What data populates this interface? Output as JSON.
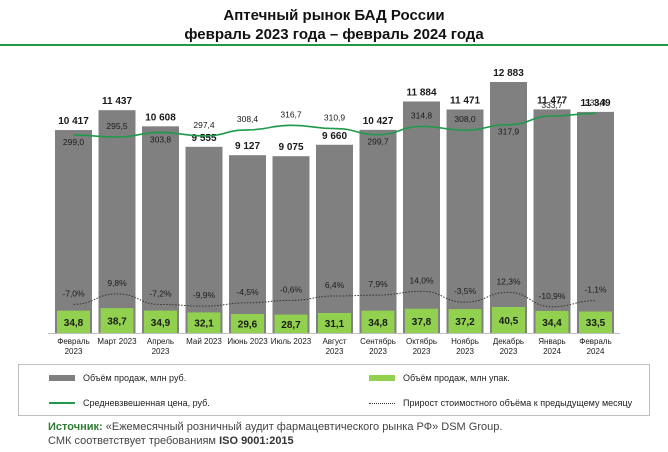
{
  "header": {
    "title_line1": "Аптечный рынок БАД России",
    "title_line2": "февраль 2023 года – февраль 2024 года"
  },
  "colors": {
    "accent_green": "#1f9a4a",
    "bar_gray": "#808080",
    "bar_green": "#92d050",
    "dotted_line": "#333333"
  },
  "chart_data": {
    "type": "bar",
    "categories": [
      "Февраль 2023",
      "Март 2023",
      "Апрель 2023",
      "Май 2023",
      "Июнь 2023",
      "Июль 2023",
      "Август 2023",
      "Сентябрь 2023",
      "Октябрь 2023",
      "Ноябрь 2023",
      "Декабрь 2023",
      "Январь 2024",
      "Февраль 2024"
    ],
    "category_labels": [
      [
        "Февраль",
        "2023"
      ],
      [
        "Март 2023"
      ],
      [
        "Апрель",
        "2023"
      ],
      [
        "Май 2023"
      ],
      [
        "Июнь 2023"
      ],
      [
        "Июль 2023"
      ],
      [
        "Август",
        "2023"
      ],
      [
        "Сентябрь",
        "2023"
      ],
      [
        "Октябрь",
        "2023"
      ],
      [
        "Ноябрь",
        "2023"
      ],
      [
        "Декабрь",
        "2023"
      ],
      [
        "Январь",
        "2024"
      ],
      [
        "Февраль",
        "2024"
      ]
    ],
    "series": [
      {
        "name": "Объём продаж, млн руб.",
        "kind": "bar",
        "values": [
          10417,
          11437,
          10608,
          9555,
          9127,
          9075,
          9660,
          10427,
          11884,
          11471,
          12883,
          11477,
          11349
        ],
        "labels": [
          "10 417",
          "11 437",
          "10 608",
          "9 555",
          "9 127",
          "9 075",
          "9 660",
          "10 427",
          "11 884",
          "11 471",
          "12 883",
          "11 477",
          "11 349"
        ]
      },
      {
        "name": "Объём продаж, млн упак.",
        "kind": "bar",
        "values": [
          34.8,
          38.7,
          34.9,
          32.1,
          29.6,
          28.7,
          31.1,
          34.8,
          37.8,
          37.2,
          40.5,
          34.4,
          33.5
        ],
        "labels": [
          "34,8",
          "38,7",
          "34,9",
          "32,1",
          "29,6",
          "28,7",
          "31,1",
          "34,8",
          "37,8",
          "37,2",
          "40,5",
          "34,4",
          "33,5"
        ]
      },
      {
        "name": "Средневзвешенная цена, руб.",
        "kind": "line",
        "values": [
          299.0,
          295.5,
          303.8,
          297.4,
          308.4,
          316.7,
          310.9,
          299.7,
          314.8,
          308.0,
          317.9,
          333.7,
          338.4
        ],
        "labels": [
          "299,0",
          "295,5",
          "303,8",
          "297,4",
          "308,4",
          "316,7",
          "310,9",
          "299,7",
          "314,8",
          "308,0",
          "317,9",
          "333,7",
          "338,4"
        ]
      },
      {
        "name": "Прирост стоимостного объёма к предыдущему месяцу",
        "kind": "line-dotted",
        "values": [
          -7.0,
          9.8,
          -7.2,
          -9.9,
          -4.5,
          -0.6,
          6.4,
          7.9,
          14.0,
          -3.5,
          12.3,
          -10.9,
          -1.1
        ],
        "labels": [
          "-7,0%",
          "9,8%",
          "-7,2%",
          "-9,9%",
          "-4,5%",
          "-0,6%",
          "6,4%",
          "7,9%",
          "14,0%",
          "-3,5%",
          "12,3%",
          "-10,9%",
          "-1,1%"
        ]
      }
    ],
    "legend_placement": "bottom",
    "grid": false
  },
  "legend": {
    "item1": "Объём продаж, млн руб.",
    "item2": "Объём продаж, млн упак.",
    "item3": "Средневзвешенная  цена, руб.",
    "item4": "Прирост стоимостного объёма к предыдущему месяцу"
  },
  "source": {
    "label": "Источник:",
    "text": " «Ежемесячный розничный аудит фармацевтического рынка РФ» DSM Group.",
    "line2_prefix": "СМК соответствует требованиям ",
    "line2_iso": "ISO 9001:2015"
  }
}
